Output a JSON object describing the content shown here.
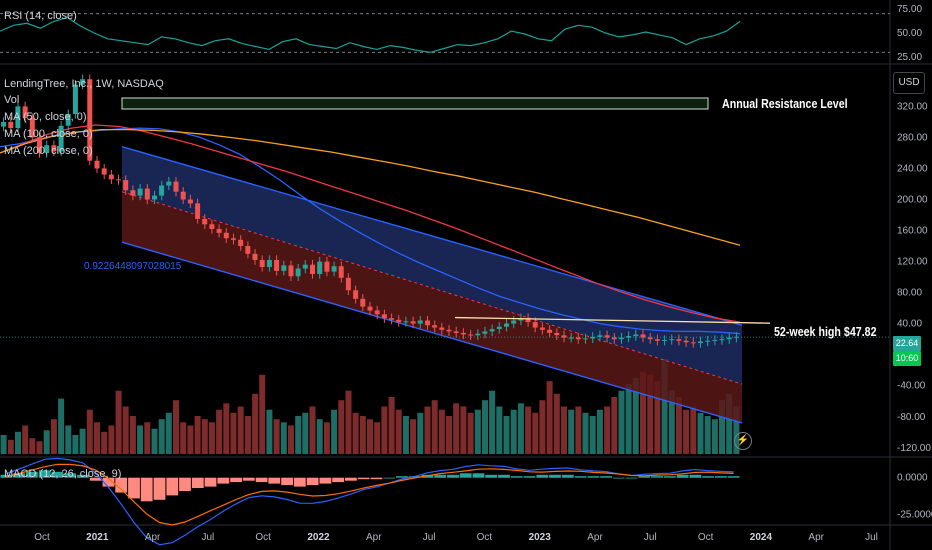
{
  "header": {
    "rsi_label": "RSI (14, close)",
    "symbol_label": "LendingTree, Inc., 1W, NASDAQ",
    "vol_label": "Vol",
    "ma50_label": "MA (50, close, 0)",
    "ma100_label": "MA (100, close, 0)",
    "ma200_label": "MA (200, close, 0)",
    "macd_label": "MACD (12, 26, close, 9)"
  },
  "price_scale": {
    "currency": "USD"
  },
  "annotations": {
    "resistance": "Annual Resistance Level",
    "high_52w": "52-week high $47.82",
    "fib_value": "0.9226448097028015"
  },
  "badges": {
    "last_price": "22.64",
    "countdown": "10:60"
  },
  "colors": {
    "background": "#000000",
    "up": "#26a69a",
    "down": "#ef5350",
    "ma50": "#2962ff",
    "ma100": "#f23645",
    "ma200": "#f7a21b",
    "rsi": "#1aa39a",
    "channel_upper_fill": "#1d2d63",
    "channel_lower_fill": "#5a1717",
    "resistance_box": "#c8e6c9",
    "high_line": "#ffe0b2",
    "badge_price": "#26a69a",
    "badge_green": "#00c853"
  },
  "chart_data": [
    {
      "type": "line",
      "name": "RSI",
      "x_ticks": [
        "Oct",
        "2021",
        "Apr",
        "Jul",
        "Oct",
        "2022",
        "Apr",
        "Jul",
        "Oct",
        "2023",
        "Apr",
        "Jul",
        "Oct",
        "2024",
        "Apr",
        "Jul"
      ],
      "y_ticks": [
        75.0,
        50.0,
        25.0
      ],
      "ylim": [
        20,
        80
      ],
      "levels": [
        70,
        30
      ],
      "values": [
        52,
        58,
        60,
        55,
        62,
        66,
        57,
        50,
        44,
        42,
        40,
        38,
        46,
        44,
        40,
        37,
        42,
        44,
        39,
        36,
        33,
        41,
        44,
        38,
        36,
        34,
        40,
        36,
        33,
        37,
        35,
        32,
        30,
        34,
        38,
        37,
        40,
        44,
        52,
        49,
        44,
        42,
        54,
        58,
        56,
        50,
        46,
        48,
        51,
        48,
        45,
        38,
        44,
        47,
        52,
        62
      ]
    },
    {
      "type": "candlestick",
      "name": "LendingTree, Inc., 1W, NASDAQ",
      "x_ticks": [
        "Oct",
        "2021",
        "Apr",
        "Jul",
        "Oct",
        "2022",
        "Apr",
        "Jul",
        "Oct",
        "2023",
        "Apr",
        "Jul",
        "Oct",
        "2024",
        "Apr",
        "Jul"
      ],
      "y_ticks": [
        320.0,
        280.0,
        240.0,
        200.0,
        160.0,
        120.0,
        80.0,
        40.0,
        0.0,
        -40.0,
        -80.0,
        -120.0
      ],
      "ylim": [
        -128,
        372
      ],
      "close": [
        300,
        292,
        320,
        305,
        280,
        260,
        270,
        262,
        295,
        310,
        348,
        355,
        250,
        240,
        232,
        226,
        225,
        212,
        205,
        214,
        200,
        205,
        218,
        223,
        210,
        200,
        195,
        175,
        168,
        162,
        157,
        150,
        148,
        140,
        130,
        122,
        113,
        122,
        108,
        115,
        101,
        111,
        116,
        104,
        120,
        107,
        114,
        99,
        83,
        72,
        62,
        57,
        52,
        47,
        45,
        42,
        43,
        40,
        44,
        38,
        35,
        32,
        30,
        28,
        26,
        25,
        27,
        30,
        33,
        36,
        40,
        44,
        47,
        42,
        35,
        32,
        28,
        25,
        22,
        22,
        20,
        21,
        23,
        25,
        22,
        20,
        22,
        24,
        26,
        22,
        20,
        18,
        19,
        20,
        18,
        16,
        15,
        17,
        18,
        19,
        20,
        22,
        23
      ]
    },
    {
      "type": "line",
      "name": "MA",
      "series": [
        {
          "name": "MA (50, close, 0)",
          "values": [
            268,
            272,
            278,
            284,
            287,
            289,
            291,
            292,
            291,
            287,
            280,
            270,
            258,
            242,
            225,
            206,
            188,
            172,
            157,
            143,
            130,
            118,
            107,
            96,
            85,
            75,
            67,
            59,
            52,
            46,
            40,
            36,
            33,
            31,
            30,
            30,
            29,
            27
          ]
        },
        {
          "name": "MA (100, close, 0)",
          "values": [
            260,
            272,
            284,
            292,
            296,
            294,
            288,
            280,
            272,
            263,
            254,
            245,
            236,
            226,
            216,
            206,
            196,
            186,
            175,
            164,
            152,
            140,
            128,
            116,
            104,
            92,
            81,
            71,
            62,
            54,
            47,
            42
          ]
        },
        {
          "name": "MA (200, close, 0)",
          "values": [
            260,
            272,
            281,
            287,
            290,
            290,
            289,
            287,
            284,
            280,
            276,
            271,
            266,
            261,
            255,
            249,
            243,
            236,
            230,
            223,
            216,
            209,
            201,
            193,
            185,
            177,
            168,
            159,
            150,
            141
          ]
        }
      ]
    },
    {
      "type": "bar",
      "name": "Vol",
      "values": [
        12,
        9,
        14,
        18,
        10,
        8,
        15,
        22,
        35,
        18,
        12,
        16,
        28,
        20,
        14,
        18,
        40,
        30,
        24,
        18,
        20,
        16,
        22,
        26,
        34,
        20,
        18,
        24,
        22,
        20,
        28,
        32,
        26,
        30,
        24,
        38,
        50,
        28,
        22,
        20,
        18,
        24,
        26,
        30,
        22,
        20,
        28,
        34,
        40,
        26,
        24,
        22,
        20,
        30,
        36,
        28,
        24,
        22,
        26,
        30,
        34,
        28,
        24,
        32,
        30,
        26,
        28,
        34,
        40,
        30,
        24,
        28,
        32,
        30,
        26,
        34,
        46,
        38,
        30,
        28,
        30,
        26,
        24,
        28,
        30,
        36,
        40,
        44,
        48,
        52,
        50,
        46,
        60,
        40,
        36,
        28,
        30,
        26,
        24,
        22,
        34,
        38,
        30
      ]
    },
    {
      "type": "bar",
      "name": "MACD (12, 26, close, 9)",
      "y_ticks": [
        0.0,
        -25.0
      ],
      "ylim": [
        -30,
        12
      ],
      "values": [
        2,
        3,
        4,
        5,
        4,
        3,
        2,
        -2,
        -6,
        -10,
        -14,
        -16,
        -15,
        -12,
        -9,
        -7,
        -6,
        -4,
        -3,
        -2,
        -3,
        -4,
        -5,
        -6,
        -5,
        -4,
        -3,
        -2,
        -1,
        -1,
        0,
        1,
        1,
        2,
        2,
        2,
        3,
        3,
        2,
        2,
        1,
        1,
        2,
        2,
        2,
        1,
        1,
        1,
        0,
        0,
        1,
        1,
        1,
        2,
        2,
        1,
        1,
        1
      ]
    }
  ]
}
